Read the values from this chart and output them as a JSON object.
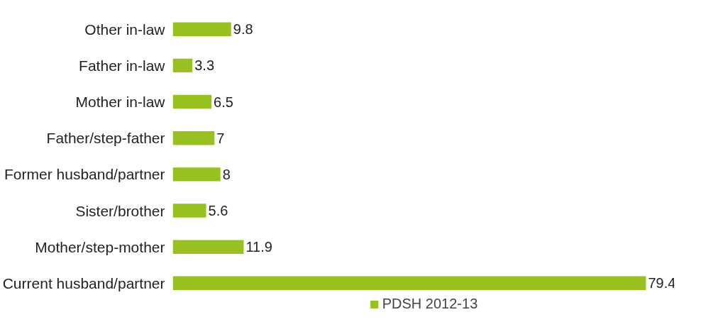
{
  "chart_data": {
    "type": "bar",
    "orientation": "horizontal",
    "categories": [
      "Other in-law",
      "Father in-law",
      "Mother in-law",
      "Father/step-father",
      "Former husband/partner",
      "Sister/brother",
      "Mother/step-mother",
      "Current husband/partner"
    ],
    "series": [
      {
        "name": "PDSH 2012-13",
        "color": "#96c11f",
        "values": [
          9.8,
          3.3,
          6.5,
          7,
          8,
          5.6,
          11.9,
          79.4
        ]
      }
    ],
    "data_labels": true,
    "legend": "bottom"
  }
}
